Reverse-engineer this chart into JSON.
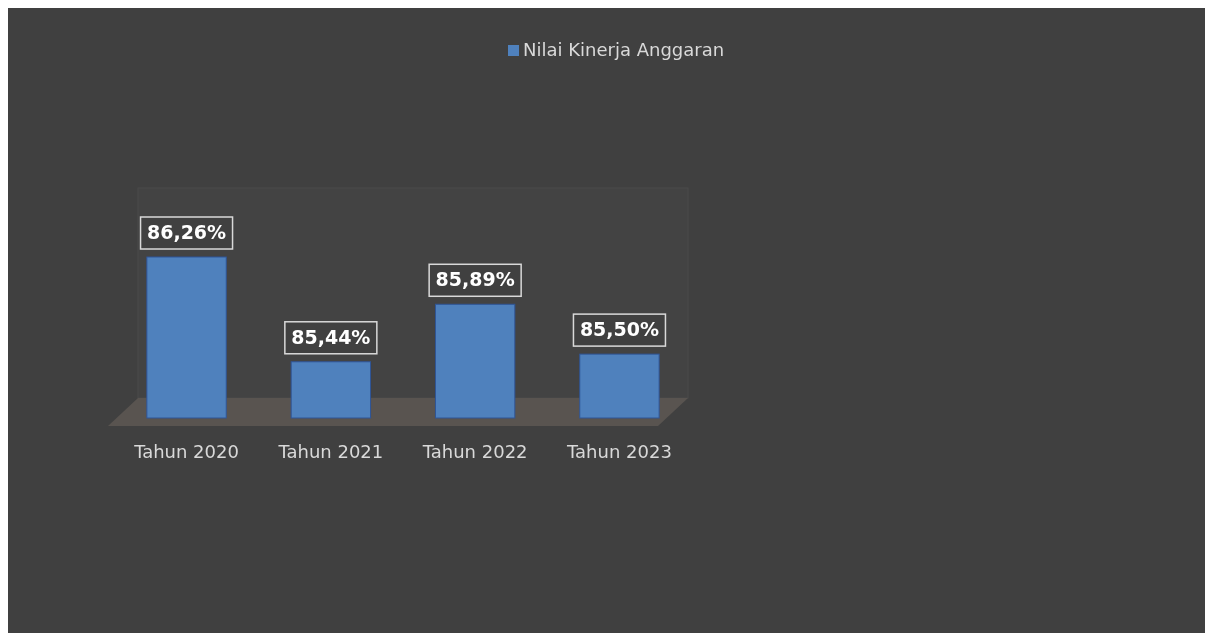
{
  "chart_data": {
    "type": "bar",
    "categories": [
      "Tahun 2020",
      "Tahun 2021",
      "Tahun 2022",
      "Tahun 2023"
    ],
    "series": [
      {
        "name": "Nilai Kinerja Anggaran",
        "color": "#4f81bd",
        "values": [
          86.26,
          85.44,
          85.89,
          85.5
        ],
        "value_labels": [
          "86,26%",
          "85,44%",
          "85,89%",
          "85,50%"
        ]
      }
    ],
    "ylim": [
      85,
      86.8
    ],
    "tick_labels": "x",
    "legend": "top",
    "grid": false
  }
}
